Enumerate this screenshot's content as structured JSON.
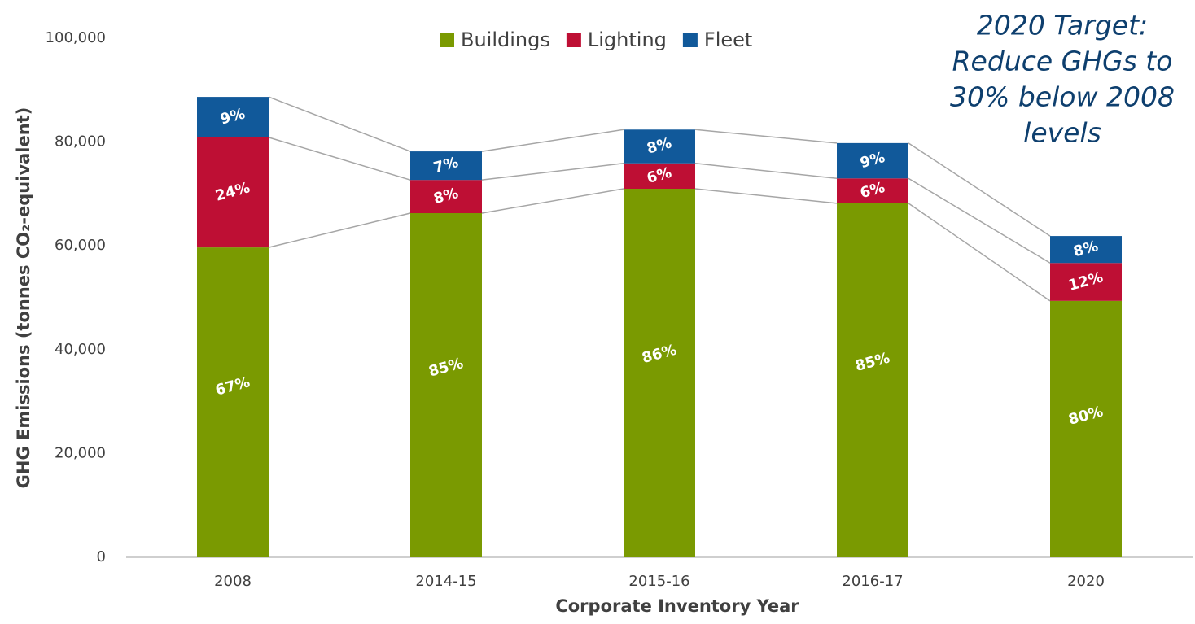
{
  "chart_data": {
    "type": "stacked_bar",
    "x_label": "Corporate Inventory Year",
    "y_label": "GHG Emissions (tonnes CO₂-equivalent)",
    "annotation": [
      "2020 Target:",
      "Reduce GHGs to",
      "30% below 2008",
      "levels"
    ],
    "categories": [
      "2008",
      "2014-15",
      "2015-16",
      "2016-17",
      "2020"
    ],
    "series": [
      {
        "name": "Buildings",
        "color": "#7a9a01",
        "values": [
          59700,
          66300,
          71000,
          68200,
          49400
        ],
        "share_labels": [
          "67%",
          "85%",
          "86%",
          "85%",
          "80%"
        ]
      },
      {
        "name": "Lighting",
        "color": "#be0f34",
        "values": [
          21200,
          6400,
          4900,
          4800,
          7300
        ],
        "share_labels": [
          "24%",
          "8%",
          "6%",
          "6%",
          "12%"
        ]
      },
      {
        "name": "Fleet",
        "color": "#11599a",
        "values": [
          7800,
          5500,
          6500,
          6800,
          5200
        ],
        "share_labels": [
          "9%",
          "7%",
          "8%",
          "9%",
          "8%"
        ]
      }
    ],
    "ylim": [
      0,
      100000
    ],
    "yticks": [
      0,
      {
        "value": 20000,
        "label": "20,000"
      },
      {
        "value": 40000,
        "label": "40,000"
      },
      {
        "value": 60000,
        "label": "60,000"
      },
      {
        "value": 80000,
        "label": "80,000"
      },
      {
        "value": 100000,
        "label": "100,000"
      }
    ],
    "grid": false,
    "legend": "top"
  }
}
